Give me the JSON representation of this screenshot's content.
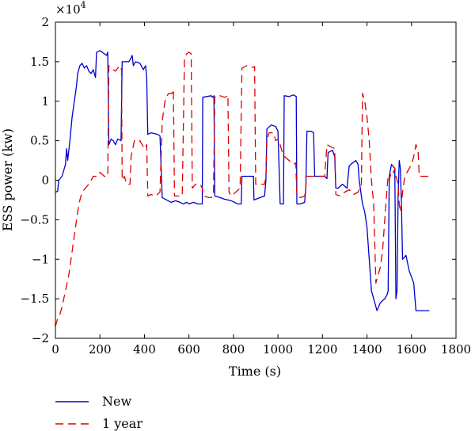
{
  "chart_data": {
    "type": "line",
    "title": "",
    "xlabel": "Time (s)",
    "ylabel": "ESS power (kw)",
    "y_multiplier": "×10",
    "y_multiplier_exp": "4",
    "xlim": [
      0,
      1800
    ],
    "ylim": [
      -2,
      2
    ],
    "xticks": [
      0,
      200,
      400,
      600,
      800,
      1000,
      1200,
      1400,
      1600,
      1800
    ],
    "yticks": [
      -2,
      -1.5,
      -1,
      -0.5,
      0,
      0.5,
      1,
      1.5,
      2
    ],
    "xtick_labels": [
      "0",
      "200",
      "400",
      "600",
      "800",
      "1000",
      "1200",
      "1400",
      "1600",
      "1800"
    ],
    "ytick_labels": [
      "−2",
      "−1.5",
      "−1",
      "−0.5",
      "0",
      "0.5",
      "1",
      "1.5",
      "2"
    ],
    "grid": false,
    "legend_position": "bottom-left, below axes",
    "series": [
      {
        "name": "New",
        "color": "#0000cc",
        "style": "solid",
        "points": [
          [
            0,
            -0.15
          ],
          [
            10,
            -0.14
          ],
          [
            15,
            0.0
          ],
          [
            30,
            0.05
          ],
          [
            45,
            0.2
          ],
          [
            50,
            0.4
          ],
          [
            55,
            0.25
          ],
          [
            65,
            0.5
          ],
          [
            75,
            0.8
          ],
          [
            85,
            1.0
          ],
          [
            95,
            1.2
          ],
          [
            100,
            1.35
          ],
          [
            110,
            1.45
          ],
          [
            120,
            1.48
          ],
          [
            130,
            1.42
          ],
          [
            140,
            1.45
          ],
          [
            150,
            1.38
          ],
          [
            160,
            1.35
          ],
          [
            170,
            1.4
          ],
          [
            180,
            1.3
          ],
          [
            185,
            1.62
          ],
          [
            200,
            1.64
          ],
          [
            220,
            1.6
          ],
          [
            230,
            1.58
          ],
          [
            235,
            1.62
          ],
          [
            240,
            0.45
          ],
          [
            250,
            0.52
          ],
          [
            260,
            0.5
          ],
          [
            270,
            0.45
          ],
          [
            280,
            0.52
          ],
          [
            295,
            0.5
          ],
          [
            300,
            1.5
          ],
          [
            320,
            1.5
          ],
          [
            330,
            1.5
          ],
          [
            340,
            1.55
          ],
          [
            345,
            1.58
          ],
          [
            350,
            1.45
          ],
          [
            360,
            1.5
          ],
          [
            380,
            1.48
          ],
          [
            395,
            1.4
          ],
          [
            405,
            1.45
          ],
          [
            410,
            1.3
          ],
          [
            415,
            0.58
          ],
          [
            430,
            0.6
          ],
          [
            460,
            0.58
          ],
          [
            470,
            0.56
          ],
          [
            480,
            -0.22
          ],
          [
            500,
            -0.25
          ],
          [
            520,
            -0.28
          ],
          [
            540,
            -0.26
          ],
          [
            560,
            -0.28
          ],
          [
            575,
            -0.3
          ],
          [
            590,
            -0.28
          ],
          [
            600,
            -0.3
          ],
          [
            620,
            -0.28
          ],
          [
            640,
            -0.3
          ],
          [
            660,
            -0.3
          ],
          [
            662,
            1.05
          ],
          [
            680,
            1.06
          ],
          [
            700,
            1.07
          ],
          [
            705,
            1.05
          ],
          [
            712,
            1.07
          ],
          [
            716,
            -0.2
          ],
          [
            740,
            -0.22
          ],
          [
            760,
            -0.24
          ],
          [
            790,
            -0.26
          ],
          [
            820,
            -0.3
          ],
          [
            835,
            -0.3
          ],
          [
            838,
            0.05
          ],
          [
            860,
            0.05
          ],
          [
            890,
            0.05
          ],
          [
            892,
            -0.25
          ],
          [
            920,
            -0.22
          ],
          [
            940,
            -0.2
          ],
          [
            946,
            0.0
          ],
          [
            950,
            0.65
          ],
          [
            970,
            0.7
          ],
          [
            990,
            0.68
          ],
          [
            1000,
            0.62
          ],
          [
            1010,
            -0.3
          ],
          [
            1025,
            -0.3
          ],
          [
            1028,
            1.07
          ],
          [
            1050,
            1.06
          ],
          [
            1070,
            1.08
          ],
          [
            1082,
            1.06
          ],
          [
            1085,
            -0.3
          ],
          [
            1100,
            -0.3
          ],
          [
            1120,
            -0.28
          ],
          [
            1125,
            -0.1
          ],
          [
            1130,
            0.62
          ],
          [
            1150,
            0.62
          ],
          [
            1160,
            0.6
          ],
          [
            1165,
            0.05
          ],
          [
            1180,
            0.05
          ],
          [
            1200,
            0.05
          ],
          [
            1210,
            0.05
          ],
          [
            1220,
            0.02
          ],
          [
            1225,
            0.35
          ],
          [
            1245,
            0.38
          ],
          [
            1255,
            0.3
          ],
          [
            1260,
            -0.1
          ],
          [
            1270,
            -0.1
          ],
          [
            1290,
            -0.05
          ],
          [
            1310,
            -0.1
          ],
          [
            1320,
            0.18
          ],
          [
            1335,
            0.22
          ],
          [
            1350,
            0.25
          ],
          [
            1360,
            0.2
          ],
          [
            1365,
            0.0
          ],
          [
            1370,
            -0.1
          ],
          [
            1380,
            -0.3
          ],
          [
            1390,
            -0.4
          ],
          [
            1400,
            -0.6
          ],
          [
            1410,
            -1.0
          ],
          [
            1420,
            -1.4
          ],
          [
            1430,
            -1.5
          ],
          [
            1445,
            -1.65
          ],
          [
            1460,
            -1.55
          ],
          [
            1480,
            -1.5
          ],
          [
            1490,
            -1.45
          ],
          [
            1495,
            -1.4
          ],
          [
            1500,
            0.05
          ],
          [
            1510,
            0.2
          ],
          [
            1525,
            0.15
          ],
          [
            1530,
            -1.5
          ],
          [
            1535,
            -1.4
          ],
          [
            1540,
            -0.2
          ],
          [
            1545,
            0.25
          ],
          [
            1550,
            0.15
          ],
          [
            1555,
            -0.3
          ],
          [
            1560,
            -1.0
          ],
          [
            1575,
            -0.95
          ],
          [
            1590,
            -1.15
          ],
          [
            1610,
            -1.3
          ],
          [
            1620,
            -1.65
          ],
          [
            1640,
            -1.65
          ],
          [
            1660,
            -1.65
          ],
          [
            1680,
            -1.65
          ]
        ]
      },
      {
        "name": "1 year",
        "color": "#e00000",
        "style": "dashed",
        "points": [
          [
            0,
            -1.85
          ],
          [
            10,
            -1.75
          ],
          [
            20,
            -1.7
          ],
          [
            30,
            -1.6
          ],
          [
            45,
            -1.4
          ],
          [
            60,
            -1.2
          ],
          [
            70,
            -1.0
          ],
          [
            80,
            -0.8
          ],
          [
            90,
            -0.6
          ],
          [
            100,
            -0.4
          ],
          [
            110,
            -0.25
          ],
          [
            120,
            -0.15
          ],
          [
            135,
            -0.1
          ],
          [
            150,
            -0.05
          ],
          [
            170,
            0.05
          ],
          [
            190,
            0.05
          ],
          [
            200,
            0.1
          ],
          [
            220,
            0.05
          ],
          [
            235,
            0.05
          ],
          [
            240,
            1.45
          ],
          [
            250,
            1.42
          ],
          [
            260,
            1.4
          ],
          [
            270,
            1.38
          ],
          [
            280,
            1.42
          ],
          [
            290,
            1.45
          ],
          [
            297,
            1.4
          ],
          [
            300,
            0.0
          ],
          [
            310,
            0.05
          ],
          [
            320,
            -0.05
          ],
          [
            335,
            -0.05
          ],
          [
            340,
            0.3
          ],
          [
            355,
            0.5
          ],
          [
            370,
            0.48
          ],
          [
            380,
            0.5
          ],
          [
            390,
            0.45
          ],
          [
            400,
            0.4
          ],
          [
            410,
            0.45
          ],
          [
            415,
            -0.2
          ],
          [
            430,
            -0.18
          ],
          [
            450,
            -0.2
          ],
          [
            470,
            -0.15
          ],
          [
            480,
            0.75
          ],
          [
            485,
            0.85
          ],
          [
            495,
            1.05
          ],
          [
            510,
            1.1
          ],
          [
            525,
            1.1
          ],
          [
            530,
            1.15
          ],
          [
            535,
            -0.2
          ],
          [
            550,
            -0.2
          ],
          [
            570,
            -0.2
          ],
          [
            580,
            1.55
          ],
          [
            590,
            1.6
          ],
          [
            600,
            1.62
          ],
          [
            610,
            1.6
          ],
          [
            615,
            -0.1
          ],
          [
            630,
            -0.05
          ],
          [
            650,
            -0.05
          ],
          [
            660,
            -0.1
          ],
          [
            665,
            -0.2
          ],
          [
            690,
            -0.22
          ],
          [
            700,
            -0.22
          ],
          [
            710,
            -0.2
          ],
          [
            716,
            1.05
          ],
          [
            730,
            1.08
          ],
          [
            760,
            1.05
          ],
          [
            770,
            1.06
          ],
          [
            775,
            1.08
          ],
          [
            780,
            -0.15
          ],
          [
            790,
            -0.2
          ],
          [
            810,
            -0.15
          ],
          [
            830,
            -0.1
          ],
          [
            838,
            1.42
          ],
          [
            860,
            1.45
          ],
          [
            880,
            1.43
          ],
          [
            890,
            1.43
          ],
          [
            895,
            1.44
          ],
          [
            900,
            -0.05
          ],
          [
            920,
            -0.05
          ],
          [
            940,
            -0.05
          ],
          [
            946,
            0.05
          ],
          [
            950,
            0.5
          ],
          [
            960,
            0.6
          ],
          [
            980,
            0.6
          ],
          [
            990,
            0.5
          ],
          [
            1000,
            0.52
          ],
          [
            1010,
            0.45
          ],
          [
            1015,
            0.4
          ],
          [
            1020,
            0.35
          ],
          [
            1030,
            0.3
          ],
          [
            1050,
            0.25
          ],
          [
            1070,
            0.2
          ],
          [
            1080,
            0.22
          ],
          [
            1085,
            -0.2
          ],
          [
            1100,
            -0.22
          ],
          [
            1120,
            -0.2
          ],
          [
            1125,
            -0.1
          ],
          [
            1128,
            0.05
          ],
          [
            1150,
            0.05
          ],
          [
            1170,
            0.05
          ],
          [
            1200,
            0.05
          ],
          [
            1210,
            0.05
          ],
          [
            1220,
            0.45
          ],
          [
            1240,
            0.42
          ],
          [
            1255,
            0.4
          ],
          [
            1260,
            -0.18
          ],
          [
            1280,
            -0.2
          ],
          [
            1300,
            -0.15
          ],
          [
            1320,
            -0.12
          ],
          [
            1340,
            -0.18
          ],
          [
            1360,
            -0.15
          ],
          [
            1375,
            -0.05
          ],
          [
            1380,
            1.1
          ],
          [
            1390,
            1.0
          ],
          [
            1400,
            0.8
          ],
          [
            1410,
            0.5
          ],
          [
            1420,
            0.0
          ],
          [
            1430,
            -0.3
          ],
          [
            1440,
            -1.3
          ],
          [
            1450,
            -1.2
          ],
          [
            1460,
            -1.1
          ],
          [
            1470,
            -0.9
          ],
          [
            1480,
            -0.5
          ],
          [
            1490,
            -0.1
          ],
          [
            1495,
            0.05
          ],
          [
            1500,
            0.0
          ],
          [
            1510,
            0.12
          ],
          [
            1520,
            0.1
          ],
          [
            1525,
            0.15
          ],
          [
            1530,
            0.05
          ],
          [
            1535,
            0.0
          ],
          [
            1540,
            -0.05
          ],
          [
            1545,
            -0.3
          ],
          [
            1550,
            -0.4
          ],
          [
            1555,
            -0.3
          ],
          [
            1560,
            -0.15
          ],
          [
            1570,
            0.05
          ],
          [
            1580,
            0.1
          ],
          [
            1590,
            0.15
          ],
          [
            1600,
            0.2
          ],
          [
            1610,
            0.3
          ],
          [
            1620,
            0.45
          ],
          [
            1630,
            0.35
          ],
          [
            1635,
            0.05
          ],
          [
            1650,
            0.05
          ],
          [
            1670,
            0.05
          ],
          [
            1680,
            0.05
          ]
        ]
      }
    ]
  }
}
